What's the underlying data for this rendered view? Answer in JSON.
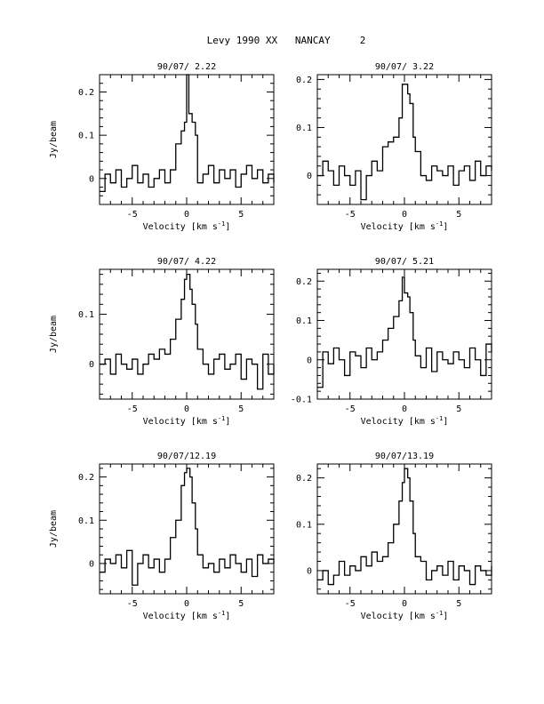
{
  "page_title": "Levy 1990 XX   NANCAY     2",
  "chart_data": [
    {
      "type": "line",
      "title": "90/07/ 2.22",
      "xlabel": "Velocity [km s⁻¹]",
      "ylabel": "Jy/beam",
      "xlim": [
        -8,
        8
      ],
      "ylim": [
        -0.06,
        0.24
      ],
      "xticks": [
        "-5",
        "0",
        "5"
      ],
      "yticks": [
        "0",
        "0.1",
        "0.2"
      ],
      "x": [
        -8,
        -7.5,
        -7,
        -6.5,
        -6,
        -5.5,
        -5,
        -4.5,
        -4,
        -3.5,
        -3,
        -2.5,
        -2,
        -1.5,
        -1,
        -0.5,
        -0.2,
        0,
        0.2,
        0.5,
        0.8,
        1,
        1.5,
        2,
        2.5,
        3,
        3.5,
        4,
        4.5,
        5,
        5.5,
        6,
        6.5,
        7,
        7.5,
        8
      ],
      "y": [
        -0.03,
        0.01,
        -0.01,
        0.02,
        -0.02,
        0.0,
        0.03,
        -0.01,
        0.01,
        -0.02,
        0.0,
        0.02,
        -0.01,
        0.02,
        0.08,
        0.11,
        0.13,
        0.24,
        0.15,
        0.13,
        0.1,
        -0.01,
        0.01,
        0.03,
        -0.01,
        0.02,
        0.0,
        0.02,
        -0.02,
        0.01,
        0.03,
        0.0,
        0.02,
        -0.01,
        0.01,
        -0.01
      ]
    },
    {
      "type": "line",
      "title": "90/07/ 3.22",
      "xlabel": "Velocity [km s⁻¹]",
      "ylabel": "",
      "xlim": [
        -8,
        8
      ],
      "ylim": [
        -0.06,
        0.21
      ],
      "xticks": [
        "-5",
        "0",
        "5"
      ],
      "yticks": [
        "0",
        "0.1",
        "0.2"
      ],
      "x": [
        -8,
        -7.5,
        -7,
        -6.5,
        -6,
        -5.5,
        -5,
        -4.5,
        -4,
        -3.5,
        -3,
        -2.5,
        -2,
        -1.5,
        -1,
        -0.5,
        -0.2,
        0,
        0.3,
        0.5,
        0.8,
        1,
        1.5,
        2,
        2.5,
        3,
        3.5,
        4,
        4.5,
        5,
        5.5,
        6,
        6.5,
        7,
        7.5,
        8
      ],
      "y": [
        0.0,
        0.03,
        0.01,
        -0.02,
        0.02,
        0.0,
        -0.02,
        0.01,
        -0.05,
        0.0,
        0.03,
        0.01,
        0.06,
        0.07,
        0.08,
        0.12,
        0.19,
        0.19,
        0.17,
        0.15,
        0.08,
        0.05,
        0.0,
        -0.01,
        0.02,
        0.01,
        0.0,
        0.02,
        -0.02,
        0.01,
        0.02,
        -0.01,
        0.03,
        0.0,
        0.02,
        0.01
      ]
    },
    {
      "type": "line",
      "title": "90/07/ 4.22",
      "xlabel": "Velocity [km s⁻¹]",
      "ylabel": "Jy/beam",
      "xlim": [
        -8,
        8
      ],
      "ylim": [
        -0.07,
        0.19
      ],
      "xticks": [
        "-5",
        "0",
        "5"
      ],
      "yticks": [
        "0",
        "0.1"
      ],
      "x": [
        -8,
        -7.5,
        -7,
        -6.5,
        -6,
        -5.5,
        -5,
        -4.5,
        -4,
        -3.5,
        -3,
        -2.5,
        -2,
        -1.5,
        -1,
        -0.5,
        -0.2,
        0,
        0.3,
        0.5,
        0.8,
        1,
        1.5,
        2,
        2.5,
        3,
        3.5,
        4,
        4.5,
        5,
        5.5,
        6,
        6.5,
        7,
        7.5,
        8
      ],
      "y": [
        0.0,
        0.01,
        -0.02,
        0.02,
        0.0,
        -0.01,
        0.01,
        -0.02,
        0.0,
        0.02,
        0.01,
        0.03,
        0.02,
        0.05,
        0.09,
        0.13,
        0.17,
        0.18,
        0.15,
        0.12,
        0.08,
        0.03,
        0.0,
        -0.02,
        0.01,
        0.02,
        -0.01,
        0.0,
        0.02,
        -0.03,
        0.01,
        0.0,
        -0.05,
        0.02,
        -0.02,
        0.0
      ]
    },
    {
      "type": "line",
      "title": "90/07/ 5.21",
      "xlabel": "Velocity [km s⁻¹]",
      "ylabel": "",
      "xlim": [
        -8,
        8
      ],
      "ylim": [
        -0.1,
        0.23
      ],
      "xticks": [
        "-5",
        "0",
        "5"
      ],
      "yticks": [
        "-0.1",
        "0",
        "0.1",
        "0.2"
      ],
      "x": [
        -8,
        -7.5,
        -7,
        -6.5,
        -6,
        -5.5,
        -5,
        -4.5,
        -4,
        -3.5,
        -3,
        -2.5,
        -2,
        -1.5,
        -1,
        -0.5,
        -0.2,
        0,
        0.3,
        0.5,
        0.8,
        1,
        1.5,
        2,
        2.5,
        3,
        3.5,
        4,
        4.5,
        5,
        5.5,
        6,
        6.5,
        7,
        7.5,
        8
      ],
      "y": [
        -0.07,
        0.02,
        -0.01,
        0.03,
        0.0,
        -0.04,
        0.02,
        0.01,
        -0.02,
        0.03,
        0.0,
        0.02,
        0.05,
        0.08,
        0.11,
        0.15,
        0.21,
        0.17,
        0.16,
        0.12,
        0.05,
        0.01,
        -0.02,
        0.03,
        -0.03,
        0.02,
        0.0,
        -0.01,
        0.02,
        0.0,
        -0.02,
        0.03,
        0.0,
        -0.04,
        0.04,
        0.02
      ]
    },
    {
      "type": "line",
      "title": "90/07/12.19",
      "xlabel": "Velocity [km s⁻¹]",
      "ylabel": "Jy/beam",
      "xlim": [
        -8,
        8
      ],
      "ylim": [
        -0.07,
        0.23
      ],
      "xticks": [
        "-5",
        "0",
        "5"
      ],
      "yticks": [
        "0",
        "0.1",
        "0.2"
      ],
      "x": [
        -8,
        -7.5,
        -7,
        -6.5,
        -6,
        -5.5,
        -5,
        -4.5,
        -4,
        -3.5,
        -3,
        -2.5,
        -2,
        -1.5,
        -1,
        -0.5,
        -0.2,
        0,
        0.3,
        0.5,
        0.8,
        1,
        1.5,
        2,
        2.5,
        3,
        3.5,
        4,
        4.5,
        5,
        5.5,
        6,
        6.5,
        7,
        7.5,
        8
      ],
      "y": [
        -0.02,
        0.01,
        0.0,
        0.02,
        -0.01,
        0.03,
        -0.05,
        0.0,
        0.02,
        -0.01,
        0.01,
        -0.02,
        0.01,
        0.06,
        0.1,
        0.18,
        0.21,
        0.22,
        0.2,
        0.14,
        0.08,
        0.02,
        -0.01,
        0.0,
        -0.02,
        0.01,
        -0.01,
        0.02,
        0.0,
        -0.02,
        0.01,
        -0.03,
        0.02,
        0.0,
        0.01,
        0.0
      ]
    },
    {
      "type": "line",
      "title": "90/07/13.19",
      "xlabel": "Velocity [km s⁻¹]",
      "ylabel": "",
      "xlim": [
        -8,
        8
      ],
      "ylim": [
        -0.05,
        0.23
      ],
      "xticks": [
        "-5",
        "0",
        "5"
      ],
      "yticks": [
        "0",
        "0.1",
        "0.2"
      ],
      "x": [
        -8,
        -7.5,
        -7,
        -6.5,
        -6,
        -5.5,
        -5,
        -4.5,
        -4,
        -3.5,
        -3,
        -2.5,
        -2,
        -1.5,
        -1,
        -0.5,
        -0.2,
        0,
        0.3,
        0.5,
        0.8,
        1,
        1.5,
        2,
        2.5,
        3,
        3.5,
        4,
        4.5,
        5,
        5.5,
        6,
        6.5,
        7,
        7.5,
        8
      ],
      "y": [
        -0.02,
        0.0,
        -0.03,
        -0.01,
        0.02,
        -0.01,
        0.01,
        0.0,
        0.03,
        0.01,
        0.04,
        0.02,
        0.03,
        0.06,
        0.1,
        0.15,
        0.19,
        0.22,
        0.2,
        0.15,
        0.08,
        0.03,
        0.02,
        -0.02,
        0.0,
        0.01,
        -0.01,
        0.02,
        -0.02,
        0.01,
        0.0,
        -0.03,
        0.01,
        0.0,
        -0.01,
        0.01
      ]
    }
  ]
}
